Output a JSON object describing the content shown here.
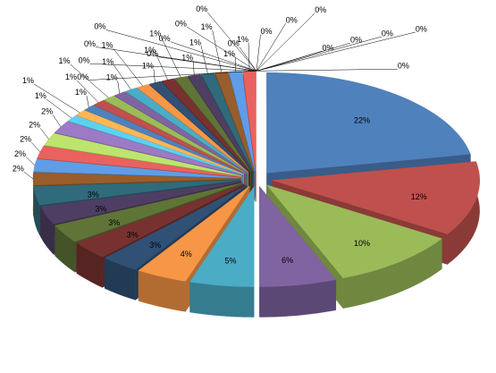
{
  "chart_data": {
    "type": "pie3d",
    "values": [
      22,
      12,
      10,
      6,
      5,
      4,
      3,
      3,
      3,
      3,
      3,
      2,
      2,
      2,
      2,
      2,
      1,
      1,
      1,
      1,
      1,
      1,
      1,
      1,
      1,
      1,
      1,
      1,
      1,
      1,
      1,
      1,
      0,
      0,
      0,
      0,
      0,
      0,
      0,
      0,
      0,
      0,
      0,
      0,
      0,
      0,
      0,
      0,
      0
    ],
    "value_labels": [
      "22%",
      "12%",
      "10%",
      "6%",
      "5%",
      "4%",
      "3%",
      "3%",
      "3%",
      "3%",
      "3%",
      "2%",
      "2%",
      "2%",
      "2%",
      "2%",
      "1%",
      "1%",
      "1%",
      "1%",
      "1%",
      "1%",
      "1%",
      "1%",
      "1%",
      "1%",
      "1%",
      "1%",
      "1%",
      "1%",
      "1%",
      "1%",
      "0%",
      "0%",
      "0%",
      "0%",
      "0%",
      "0%",
      "0%",
      "0%",
      "0%",
      "0%",
      "0%",
      "0%",
      "0%",
      "0%",
      "0%",
      "0%",
      "0%"
    ],
    "colors": [
      "#4f81bd",
      "#c0504d",
      "#9bbb59",
      "#8064a2",
      "#4bacc6",
      "#f79646"
    ]
  }
}
